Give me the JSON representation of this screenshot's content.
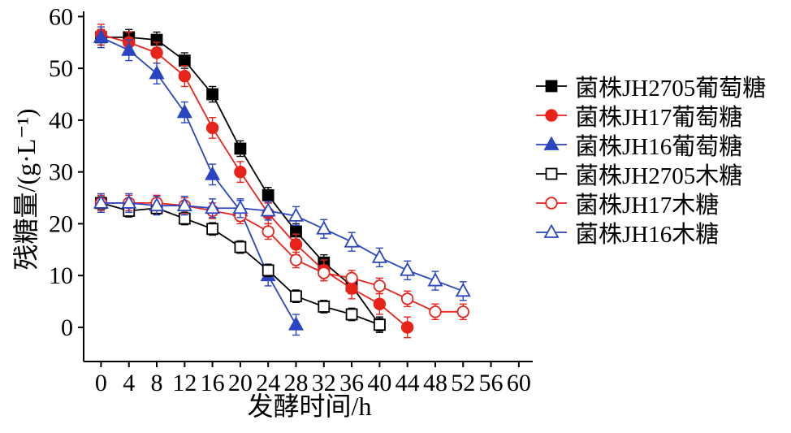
{
  "chart_data": {
    "type": "line",
    "title": "",
    "xlabel": "发酵时间/h",
    "ylabel": "残糖量/(g·L⁻¹)",
    "xlim": [
      -2.5,
      62
    ],
    "ylim": [
      -6.6,
      61
    ],
    "x_ticks": [
      0,
      4,
      8,
      12,
      16,
      20,
      24,
      28,
      32,
      36,
      40,
      44,
      48,
      52,
      56,
      60
    ],
    "y_ticks": [
      0,
      10,
      20,
      30,
      40,
      50,
      60
    ],
    "grid": false,
    "legend_position": "right",
    "series": [
      {
        "name": "菌株JH2705葡萄糖",
        "color": "#000000",
        "marker": "square",
        "filled": true,
        "err": 1.5,
        "x": [
          0,
          4,
          8,
          12,
          16,
          20,
          24,
          28,
          32,
          36,
          40
        ],
        "y": [
          56,
          56,
          55.5,
          51.5,
          45,
          34.5,
          25.5,
          18.5,
          12.5,
          8,
          0.5
        ]
      },
      {
        "name": "菌株JH17葡萄糖",
        "color": "#e8231a",
        "marker": "circle",
        "filled": true,
        "err": 2,
        "x": [
          0,
          4,
          8,
          12,
          16,
          20,
          24,
          28,
          32,
          36,
          40,
          44
        ],
        "y": [
          56.5,
          55,
          53,
          48.5,
          38.5,
          30,
          22,
          16,
          11,
          7.5,
          4.5,
          0
        ]
      },
      {
        "name": "菌株JH16葡萄糖",
        "color": "#2a45c2",
        "marker": "triangle",
        "filled": true,
        "err": 2,
        "x": [
          0,
          4,
          8,
          12,
          16,
          20,
          24,
          28
        ],
        "y": [
          56,
          53.5,
          49,
          41.5,
          29.5,
          22.5,
          10,
          0.5
        ]
      },
      {
        "name": "菌株JH2705木糖",
        "color": "#000000",
        "marker": "square",
        "filled": false,
        "err": 1.2,
        "x": [
          0,
          4,
          8,
          12,
          16,
          20,
          24,
          28,
          32,
          36,
          40
        ],
        "y": [
          24,
          22.5,
          23,
          21,
          19,
          15.5,
          11,
          6,
          4,
          2.5,
          0.5
        ]
      },
      {
        "name": "菌株JH17木糖",
        "color": "#e8231a",
        "marker": "circle",
        "filled": false,
        "err": 1.5,
        "x": [
          0,
          4,
          8,
          12,
          16,
          20,
          24,
          28,
          32,
          36,
          40,
          44,
          48,
          52
        ],
        "y": [
          24,
          24,
          24,
          23.5,
          22.5,
          21.5,
          18.5,
          13,
          10.5,
          9.5,
          8,
          5.5,
          3,
          3
        ]
      },
      {
        "name": "菌株JH16木糖",
        "color": "#2a45c2",
        "marker": "triangle",
        "filled": false,
        "err": 1.8,
        "x": [
          0,
          4,
          8,
          12,
          16,
          20,
          24,
          28,
          32,
          36,
          40,
          44,
          48,
          52
        ],
        "y": [
          24,
          24,
          23.5,
          23.5,
          23,
          23,
          22.5,
          21.5,
          19,
          16.5,
          13.5,
          11,
          9,
          7
        ]
      }
    ]
  }
}
